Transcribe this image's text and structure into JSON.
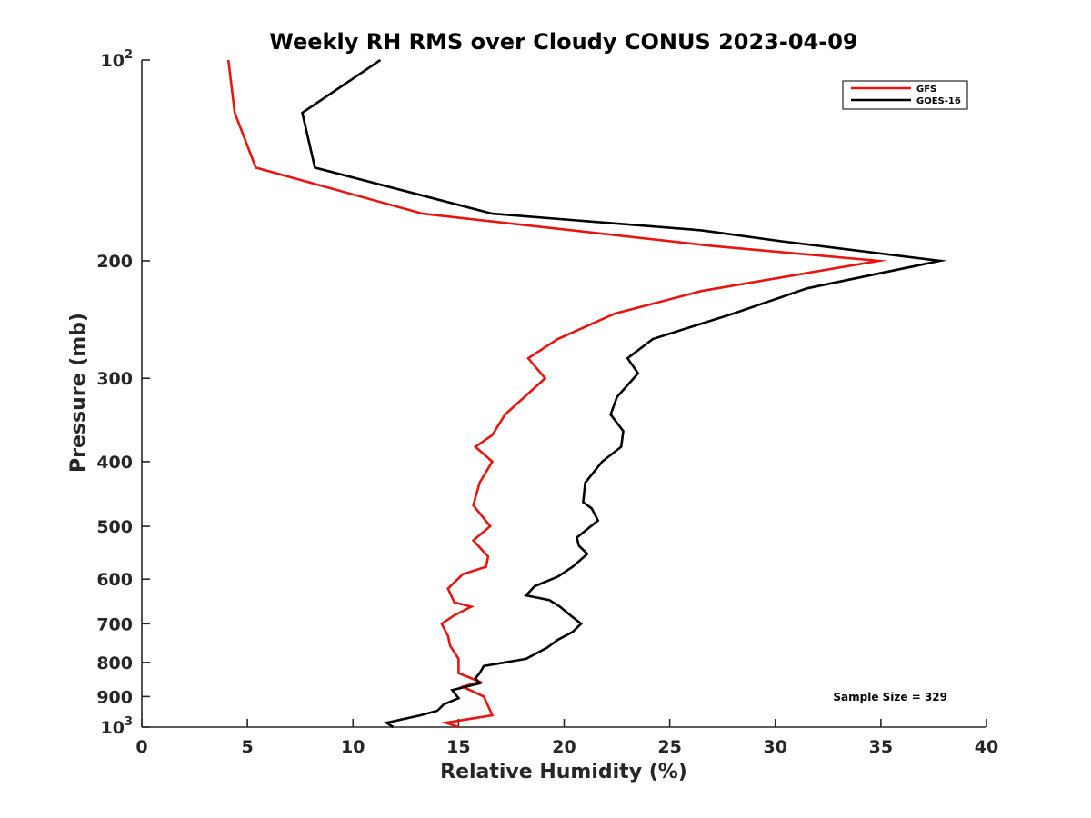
{
  "chart_data": {
    "type": "line",
    "title": "Weekly RH RMS over Cloudy CONUS 2023-04-09",
    "xlabel": "Relative Humidity (%)",
    "ylabel": "Pressure (mb)",
    "xlim": [
      0,
      40
    ],
    "ylim": [
      100,
      1000
    ],
    "y_scale": "log",
    "y_reversed": true,
    "grid": false,
    "x_ticks": [
      {
        "value": 0,
        "label": "0"
      },
      {
        "value": 5,
        "label": "5"
      },
      {
        "value": 10,
        "label": "10"
      },
      {
        "value": 15,
        "label": "15"
      },
      {
        "value": 20,
        "label": "20"
      },
      {
        "value": 25,
        "label": "25"
      },
      {
        "value": 30,
        "label": "30"
      },
      {
        "value": 35,
        "label": "35"
      },
      {
        "value": 40,
        "label": "40"
      }
    ],
    "y_ticks": [
      {
        "value": 100,
        "label": "10",
        "exp": "2"
      },
      {
        "value": 200,
        "label": "200"
      },
      {
        "value": 300,
        "label": "300"
      },
      {
        "value": 400,
        "label": "400"
      },
      {
        "value": 500,
        "label": "500"
      },
      {
        "value": 600,
        "label": "600"
      },
      {
        "value": 700,
        "label": "700"
      },
      {
        "value": 800,
        "label": "800"
      },
      {
        "value": 900,
        "label": "900"
      },
      {
        "value": 1000,
        "label": "10",
        "exp": "3"
      }
    ],
    "legend_position": "top-right",
    "series": [
      {
        "name": "GFS",
        "color": "#e8140f",
        "points": [
          [
            4.1,
            100
          ],
          [
            4.4,
            120
          ],
          [
            5.4,
            145
          ],
          [
            13.3,
            170
          ],
          [
            27.0,
            190
          ],
          [
            34.9,
            200
          ],
          [
            26.5,
            222
          ],
          [
            22.4,
            240
          ],
          [
            19.7,
            262
          ],
          [
            18.3,
            280
          ],
          [
            19.1,
            300
          ],
          [
            17.2,
            340
          ],
          [
            16.6,
            365
          ],
          [
            15.8,
            380
          ],
          [
            16.6,
            400
          ],
          [
            16.0,
            430
          ],
          [
            15.7,
            465
          ],
          [
            16.5,
            500
          ],
          [
            15.7,
            525
          ],
          [
            16.4,
            555
          ],
          [
            16.3,
            575
          ],
          [
            15.2,
            590
          ],
          [
            14.5,
            620
          ],
          [
            14.8,
            650
          ],
          [
            15.6,
            660
          ],
          [
            14.8,
            680
          ],
          [
            14.2,
            700
          ],
          [
            14.5,
            730
          ],
          [
            14.6,
            755
          ],
          [
            15.0,
            790
          ],
          [
            15.0,
            830
          ],
          [
            16.0,
            855
          ],
          [
            15.2,
            870
          ],
          [
            16.2,
            900
          ],
          [
            16.6,
            960
          ],
          [
            14.4,
            985
          ],
          [
            15.0,
            1000
          ]
        ]
      },
      {
        "name": "GOES-16",
        "color": "#000000",
        "points": [
          [
            11.3,
            100
          ],
          [
            7.6,
            120
          ],
          [
            8.2,
            145
          ],
          [
            16.6,
            170
          ],
          [
            26.5,
            180
          ],
          [
            30.3,
            187
          ],
          [
            37.8,
            200
          ],
          [
            31.5,
            220
          ],
          [
            28.0,
            240
          ],
          [
            24.2,
            262
          ],
          [
            23.0,
            280
          ],
          [
            23.5,
            295
          ],
          [
            22.5,
            320
          ],
          [
            22.2,
            340
          ],
          [
            22.8,
            360
          ],
          [
            22.7,
            380
          ],
          [
            21.8,
            400
          ],
          [
            21.0,
            430
          ],
          [
            20.9,
            460
          ],
          [
            21.3,
            470
          ],
          [
            21.6,
            490
          ],
          [
            20.6,
            520
          ],
          [
            20.7,
            535
          ],
          [
            21.1,
            550
          ],
          [
            20.4,
            575
          ],
          [
            19.7,
            595
          ],
          [
            18.6,
            615
          ],
          [
            18.2,
            635
          ],
          [
            19.3,
            645
          ],
          [
            19.8,
            660
          ],
          [
            20.3,
            680
          ],
          [
            20.8,
            700
          ],
          [
            20.4,
            720
          ],
          [
            19.7,
            740
          ],
          [
            19.2,
            760
          ],
          [
            18.2,
            790
          ],
          [
            16.2,
            810
          ],
          [
            16.0,
            830
          ],
          [
            15.8,
            845
          ],
          [
            16.0,
            860
          ],
          [
            14.7,
            880
          ],
          [
            15.0,
            905
          ],
          [
            14.3,
            925
          ],
          [
            14.0,
            945
          ],
          [
            13.2,
            960
          ],
          [
            11.6,
            985
          ],
          [
            11.9,
            1000
          ]
        ]
      }
    ],
    "annotation": "Sample Size = 329"
  }
}
